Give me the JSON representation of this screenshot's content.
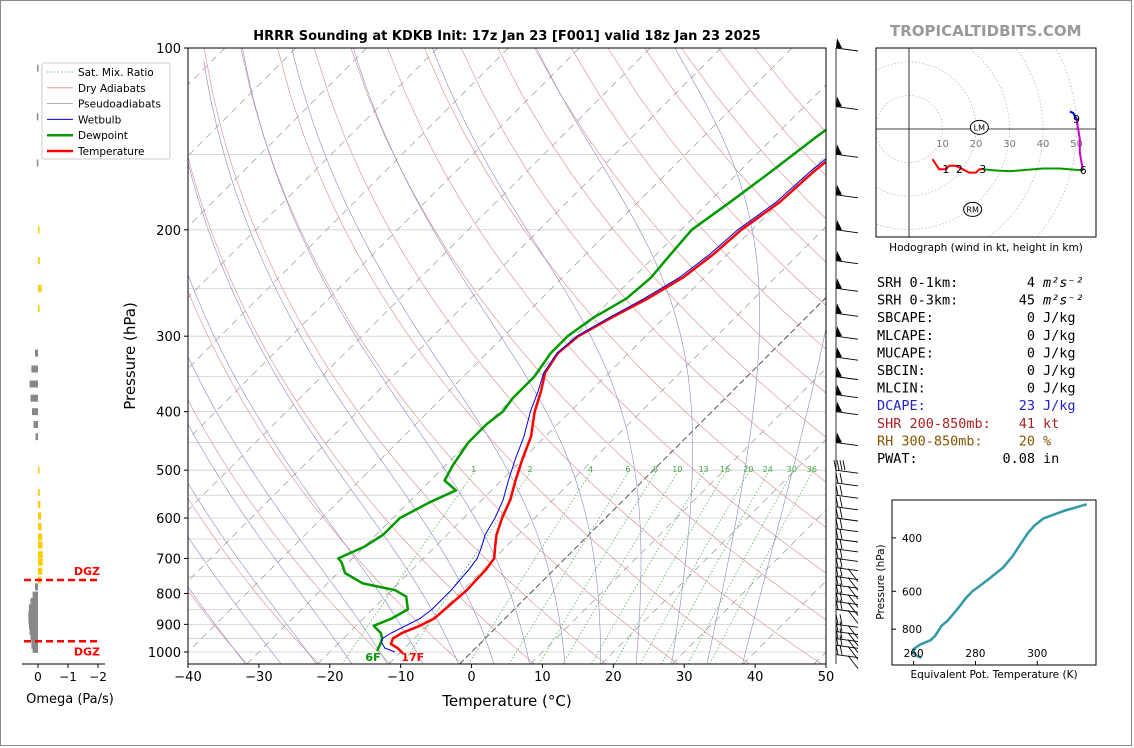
{
  "site": "TROPICALTIDBITS.COM",
  "chart_data": [
    {
      "type": "line",
      "chart": "skew-t",
      "title": "HRRR Sounding at KDKB Init: 17z Jan 23 [F001] valid 18z Jan 23 2025",
      "xlabel": "Temperature (°C)",
      "ylabel": "Pressure (hPa)",
      "xlim": [
        -40,
        50
      ],
      "ylim": [
        1050,
        100
      ],
      "y_scale": "log",
      "x_ticks": [
        -40,
        -30,
        -20,
        -10,
        0,
        10,
        20,
        30,
        40,
        50
      ],
      "x_tick_labels": [
        "−40",
        "−30",
        "−20",
        "−10",
        "0",
        "10",
        "20",
        "30",
        "40",
        "50"
      ],
      "y_ticks": [
        100,
        200,
        300,
        400,
        500,
        600,
        700,
        800,
        900,
        1000
      ],
      "legend": [
        "Sat. Mix. Ratio",
        "Dry Adiabats",
        "Pseudoadiabats",
        "Wetbulb",
        "Dewpoint",
        "Temperature"
      ],
      "legend_position": "top-left",
      "mixing_ratio_labels": [
        "1",
        "2",
        "4",
        "6",
        "8",
        "10",
        "13",
        "16",
        "20",
        "24",
        "30",
        "36"
      ],
      "mixing_ratio_values": [
        1,
        2,
        4,
        6,
        8,
        10,
        13,
        16,
        20,
        24,
        30,
        36
      ],
      "colors": {
        "temperature": "#ff0000",
        "dewpoint": "#009900",
        "wetbulb": "#0000dd",
        "dry_adiabat": "#dd8888",
        "pseudoadiabat": "#8888cc",
        "mixing_ratio": "#44aa44",
        "isotherm": "#999999"
      },
      "series": [
        {
          "name": "Temperature",
          "points": [
            [
              1005,
              -9.5
            ],
            [
              985,
              -11
            ],
            [
              970,
              -12.5
            ],
            [
              950,
              -13
            ],
            [
              930,
              -12.5
            ],
            [
              905,
              -11
            ],
            [
              880,
              -10
            ],
            [
              850,
              -9.8
            ],
            [
              820,
              -9.6
            ],
            [
              790,
              -9.4
            ],
            [
              760,
              -9.5
            ],
            [
              730,
              -9.6
            ],
            [
              700,
              -10
            ],
            [
              670,
              -11.5
            ],
            [
              640,
              -13
            ],
            [
              600,
              -14.6
            ],
            [
              560,
              -16
            ],
            [
              520,
              -18
            ],
            [
              480,
              -20
            ],
            [
              440,
              -22
            ],
            [
              400,
              -25
            ],
            [
              370,
              -27
            ],
            [
              345,
              -29
            ],
            [
              320,
              -30
            ],
            [
              300,
              -29.5
            ],
            [
              280,
              -27.5
            ],
            [
              260,
              -25
            ],
            [
              240,
              -23
            ],
            [
              220,
              -22
            ],
            [
              200,
              -21.5
            ],
            [
              180,
              -20
            ],
            [
              160,
              -19.5
            ],
            [
              140,
              -18.3
            ],
            [
              120,
              -17
            ],
            [
              100,
              -16
            ]
          ]
        },
        {
          "name": "Dewpoint",
          "points": [
            [
              995,
              -13.5
            ],
            [
              970,
              -14
            ],
            [
              950,
              -14.5
            ],
            [
              930,
              -15.5
            ],
            [
              905,
              -17.5
            ],
            [
              880,
              -16
            ],
            [
              850,
              -15
            ],
            [
              830,
              -16
            ],
            [
              810,
              -17
            ],
            [
              790,
              -19.5
            ],
            [
              770,
              -25
            ],
            [
              740,
              -29
            ],
            [
              710,
              -31
            ],
            [
              700,
              -32
            ],
            [
              670,
              -30
            ],
            [
              640,
              -29
            ],
            [
              600,
              -29
            ],
            [
              565,
              -27
            ],
            [
              540,
              -25
            ],
            [
              520,
              -28
            ],
            [
              490,
              -29
            ],
            [
              450,
              -30
            ],
            [
              420,
              -30
            ],
            [
              400,
              -29.5
            ],
            [
              380,
              -30
            ],
            [
              350,
              -30
            ],
            [
              320,
              -31
            ],
            [
              300,
              -31
            ],
            [
              280,
              -30
            ],
            [
              260,
              -28
            ],
            [
              240,
              -27.5
            ],
            [
              220,
              -28
            ],
            [
              200,
              -28.5
            ],
            [
              180,
              -27
            ],
            [
              160,
              -25.5
            ],
            [
              140,
              -24
            ],
            [
              120,
              -22
            ],
            [
              100,
              -20
            ]
          ]
        },
        {
          "name": "Wetbulb",
          "points": [
            [
              1000,
              -10.8
            ],
            [
              985,
              -12.8
            ],
            [
              965,
              -14
            ],
            [
              950,
              -14.5
            ],
            [
              930,
              -14
            ],
            [
              905,
              -13
            ],
            [
              880,
              -12
            ],
            [
              850,
              -11.6
            ],
            [
              820,
              -11.6
            ],
            [
              790,
              -11.6
            ],
            [
              760,
              -11.8
            ],
            [
              730,
              -12
            ],
            [
              700,
              -12.4
            ],
            [
              670,
              -13.4
            ],
            [
              640,
              -14.6
            ],
            [
              600,
              -15.6
            ],
            [
              560,
              -17
            ],
            [
              520,
              -19
            ],
            [
              480,
              -21
            ],
            [
              440,
              -23
            ],
            [
              400,
              -25.6
            ],
            [
              370,
              -27.4
            ],
            [
              345,
              -29.2
            ],
            [
              320,
              -30.1
            ],
            [
              300,
              -29.7
            ],
            [
              280,
              -27.8
            ],
            [
              260,
              -25.5
            ],
            [
              240,
              -23.5
            ],
            [
              220,
              -22.5
            ],
            [
              200,
              -22
            ],
            [
              180,
              -20.5
            ],
            [
              160,
              -20
            ],
            [
              140,
              -18.8
            ],
            [
              120,
              -17.5
            ],
            [
              100,
              -16.5
            ]
          ]
        }
      ],
      "annotations": [
        {
          "text": "6F",
          "pressure": 1000,
          "temperature": -13.9,
          "color": "#009900"
        },
        {
          "text": "17F",
          "pressure": 1000,
          "temperature": -8.3,
          "color": "#ff0000"
        }
      ],
      "wind_barbs_pressure": [
        1010,
        975,
        950,
        925,
        900,
        850,
        825,
        800,
        775,
        750,
        725,
        700,
        675,
        650,
        625,
        600,
        575,
        550,
        525,
        500,
        450,
        400,
        375,
        350,
        325,
        300,
        275,
        250,
        225,
        200,
        175,
        150,
        125,
        100
      ]
    },
    {
      "type": "bar",
      "chart": "omega-profile",
      "xlabel": "Omega (Pa/s)",
      "x_ticks": [
        0,
        -1,
        -2
      ],
      "x_tick_labels": [
        "0",
        "−1",
        "−2"
      ],
      "xlim": [
        0.5,
        -2
      ],
      "dgz_label": "DGZ",
      "dgz_pressure": [
        960,
        760
      ],
      "colors": {
        "ascent": "#888888",
        "descent": "#ffcc00",
        "dgz": "#ff0000"
      },
      "values": [
        {
          "p": 990,
          "w": 0.18
        },
        {
          "p": 975,
          "w": 0.22
        },
        {
          "p": 960,
          "w": 0.22
        },
        {
          "p": 945,
          "w": 0.25
        },
        {
          "p": 925,
          "w": 0.28
        },
        {
          "p": 905,
          "w": 0.3
        },
        {
          "p": 885,
          "w": 0.32
        },
        {
          "p": 865,
          "w": 0.32
        },
        {
          "p": 845,
          "w": 0.3
        },
        {
          "p": 825,
          "w": 0.25
        },
        {
          "p": 805,
          "w": 0.18
        },
        {
          "p": 780,
          "w": 0.1
        },
        {
          "p": 760,
          "w": -0.1
        },
        {
          "p": 735,
          "w": -0.14
        },
        {
          "p": 710,
          "w": -0.16
        },
        {
          "p": 690,
          "w": -0.16
        },
        {
          "p": 665,
          "w": -0.15
        },
        {
          "p": 645,
          "w": -0.14
        },
        {
          "p": 620,
          "w": -0.12
        },
        {
          "p": 595,
          "w": -0.1
        },
        {
          "p": 570,
          "w": -0.08
        },
        {
          "p": 545,
          "w": -0.06
        },
        {
          "p": 500,
          "w": -0.03
        },
        {
          "p": 440,
          "w": 0.08
        },
        {
          "p": 420,
          "w": 0.15
        },
        {
          "p": 400,
          "w": 0.2
        },
        {
          "p": 380,
          "w": 0.25
        },
        {
          "p": 360,
          "w": 0.28
        },
        {
          "p": 340,
          "w": 0.22
        },
        {
          "p": 320,
          "w": 0.1
        },
        {
          "p": 270,
          "w": -0.03
        },
        {
          "p": 250,
          "w": -0.12
        },
        {
          "p": 225,
          "w": -0.06
        },
        {
          "p": 200,
          "w": -0.03
        },
        {
          "p": 155,
          "w": 0.04
        },
        {
          "p": 130,
          "w": 0.04
        },
        {
          "p": 108,
          "w": 0.03
        }
      ]
    },
    {
      "type": "line",
      "chart": "hodograph",
      "xlabel": "Hodograph (wind in kt, height in km)",
      "rings": [
        10,
        20,
        30,
        40,
        50
      ],
      "ring_labels": [
        "10",
        "20",
        "30",
        "40",
        "50"
      ],
      "colors": {
        "0-3km": "#ff0000",
        "3-6km": "#009900",
        "6-9km": "#cc00cc",
        "9-12km": "#0000ff",
        "rings": "#bbbbbb"
      },
      "segments": [
        {
          "name": "0-3km",
          "points": [
            [
              7,
              -9
            ],
            [
              9,
              -12
            ],
            [
              11,
              -12
            ],
            [
              12,
              -11
            ],
            [
              14,
              -11
            ],
            [
              16,
              -12
            ],
            [
              18,
              -13
            ],
            [
              20,
              -13
            ],
            [
              21,
              -12
            ],
            [
              22,
              -12
            ]
          ]
        },
        {
          "name": "3-6km",
          "points": [
            [
              22,
              -12
            ],
            [
              26,
              -12.4
            ],
            [
              30,
              -12.6
            ],
            [
              35,
              -12.2
            ],
            [
              40,
              -11.8
            ],
            [
              45,
              -11.8
            ],
            [
              50,
              -12.2
            ],
            [
              52,
              -12.3
            ]
          ]
        },
        {
          "name": "6-9km",
          "points": [
            [
              52,
              -12.3
            ],
            [
              51.5,
              -10
            ],
            [
              51,
              -7
            ],
            [
              51,
              -3
            ],
            [
              50.5,
              0
            ],
            [
              50,
              3
            ]
          ]
        },
        {
          "name": "9-12km",
          "points": [
            [
              50,
              3
            ],
            [
              49,
              4.8
            ],
            [
              48,
              5.2
            ]
          ]
        }
      ],
      "height_labels": [
        {
          "text": "1",
          "u": 11,
          "v": -12
        },
        {
          "text": "2",
          "u": 15,
          "v": -12
        },
        {
          "text": "3",
          "u": 22,
          "v": -12
        },
        {
          "text": "6",
          "u": 52,
          "v": -12.3
        },
        {
          "text": "9",
          "u": 50,
          "v": 3
        }
      ],
      "markers": [
        {
          "text": "LM",
          "u": 21,
          "v": 0.5
        },
        {
          "text": "RM",
          "u": 19,
          "v": -24
        }
      ]
    },
    {
      "type": "line",
      "chart": "theta-e",
      "xlabel": "Equivalent Pot. Temperature (K)",
      "ylabel": "Pressure (hPa)",
      "x_ticks": [
        260,
        280,
        300
      ],
      "y_ticks": [
        400,
        600,
        800
      ],
      "xlim": [
        253,
        319
      ],
      "ylim": [
        1050,
        300
      ],
      "colors": {
        "line": "#3399aa"
      },
      "points": [
        [
          995,
          262.5
        ],
        [
          980,
          261
        ],
        [
          960,
          260
        ],
        [
          930,
          260
        ],
        [
          900,
          262
        ],
        [
          870,
          265.5
        ],
        [
          840,
          267
        ],
        [
          810,
          268
        ],
        [
          780,
          269
        ],
        [
          750,
          271
        ],
        [
          710,
          273
        ],
        [
          670,
          275
        ],
        [
          630,
          277
        ],
        [
          600,
          279
        ],
        [
          570,
          282
        ],
        [
          540,
          285
        ],
        [
          500,
          289
        ],
        [
          460,
          292
        ],
        [
          420,
          294.5
        ],
        [
          385,
          297
        ],
        [
          365,
          299
        ],
        [
          345,
          302
        ],
        [
          325,
          309
        ],
        [
          310,
          316
        ]
      ]
    }
  ],
  "indices": [
    {
      "label": "SRH 0-1km:",
      "value": "4",
      "unit": "m²s⁻²",
      "color": "#000000"
    },
    {
      "label": "SRH 0-3km:",
      "value": "45",
      "unit": "m²s⁻²",
      "color": "#000000"
    },
    {
      "label": "SBCAPE:",
      "value": "0",
      "unit": "J/kg",
      "color": "#000000"
    },
    {
      "label": "MLCAPE:",
      "value": "0",
      "unit": "J/kg",
      "color": "#000000"
    },
    {
      "label": "MUCAPE:",
      "value": "0",
      "unit": "J/kg",
      "color": "#000000"
    },
    {
      "label": "SBCIN:",
      "value": "0",
      "unit": "J/kg",
      "color": "#000000"
    },
    {
      "label": "MLCIN:",
      "value": "0",
      "unit": "J/kg",
      "color": "#000000"
    },
    {
      "label": "DCAPE:",
      "value": "23",
      "unit": "J/kg",
      "color": "#2222cc"
    },
    {
      "label": "SHR 200-850mb:",
      "value": "41",
      "unit": "kt",
      "color": "#aa2222"
    },
    {
      "label": "RH 300-850mb:",
      "value": "20",
      "unit": "%",
      "color": "#885500"
    },
    {
      "label": "PWAT:",
      "value": "0.08",
      "unit": "in",
      "color": "#000000"
    }
  ]
}
